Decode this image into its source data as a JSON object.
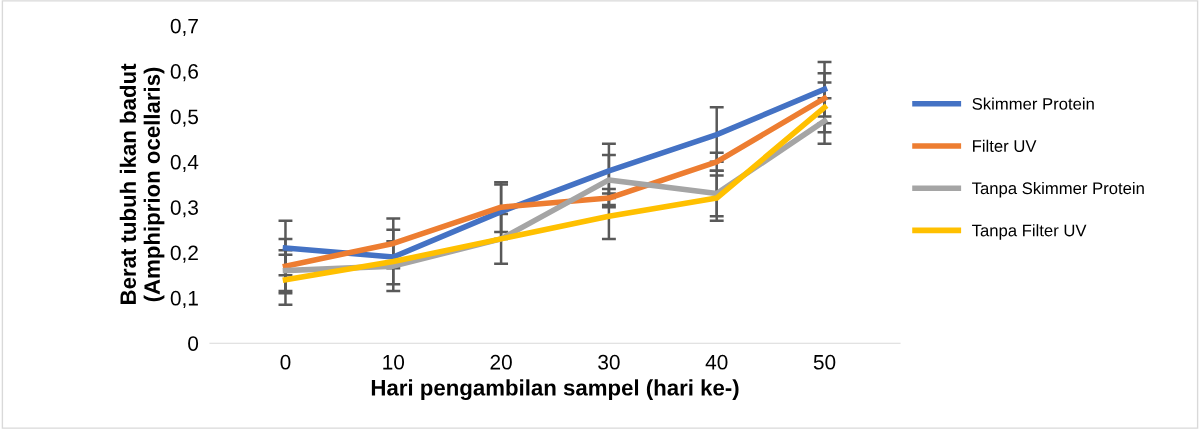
{
  "chart_data": {
    "type": "line",
    "xlabel": "Hari pengambilan sampel (hari ke-)",
    "ylabel": "Berat tubuh ikan badut\n(Amphiprion ocellaris)",
    "x": [
      0,
      10,
      20,
      30,
      40,
      50
    ],
    "xlim": [
      -7,
      57
    ],
    "xticks": [
      0,
      10,
      20,
      30,
      40,
      50
    ],
    "ylim": [
      0,
      0.7
    ],
    "yticks": [
      {
        "value": 0,
        "label": "0"
      },
      {
        "value": 0.1,
        "label": "0,1"
      },
      {
        "value": 0.2,
        "label": "0,2"
      },
      {
        "value": 0.3,
        "label": "0,3"
      },
      {
        "value": 0.4,
        "label": "0,4"
      },
      {
        "value": 0.5,
        "label": "0,5"
      },
      {
        "value": 0.6,
        "label": "0,6"
      },
      {
        "value": 0.7,
        "label": "0,7"
      }
    ],
    "series": [
      {
        "name": "Skimmer Protein",
        "color": "#4472c4",
        "values": [
          0.21,
          0.19,
          0.29,
          0.38,
          0.46,
          0.56
        ],
        "errors": [
          0.06,
          0.06,
          0.06,
          0.06,
          0.06,
          0.06
        ]
      },
      {
        "name": "Filter UV",
        "color": "#ed7d31",
        "values": [
          0.17,
          0.22,
          0.3,
          0.32,
          0.4,
          0.54
        ],
        "errors": [
          0.06,
          0.055,
          0.055,
          0.02,
          0.02,
          0.055
        ]
      },
      {
        "name": "Tanpa Skimmer Protein",
        "color": "#a5a5a5",
        "values": [
          0.16,
          0.17,
          0.23,
          0.36,
          0.33,
          0.49
        ],
        "errors": [
          0.045,
          0.055,
          0.055,
          0.055,
          0.05,
          0.05
        ]
      },
      {
        "name": "Tanpa Filter UV",
        "color": "#ffc000",
        "values": [
          0.14,
          0.18,
          0.23,
          0.28,
          0.32,
          0.52
        ],
        "errors": [
          0.055,
          null,
          null,
          0.05,
          0.05,
          0.055
        ]
      }
    ],
    "grid": false,
    "legend": "right",
    "marker": "none",
    "line_style": "solid"
  }
}
